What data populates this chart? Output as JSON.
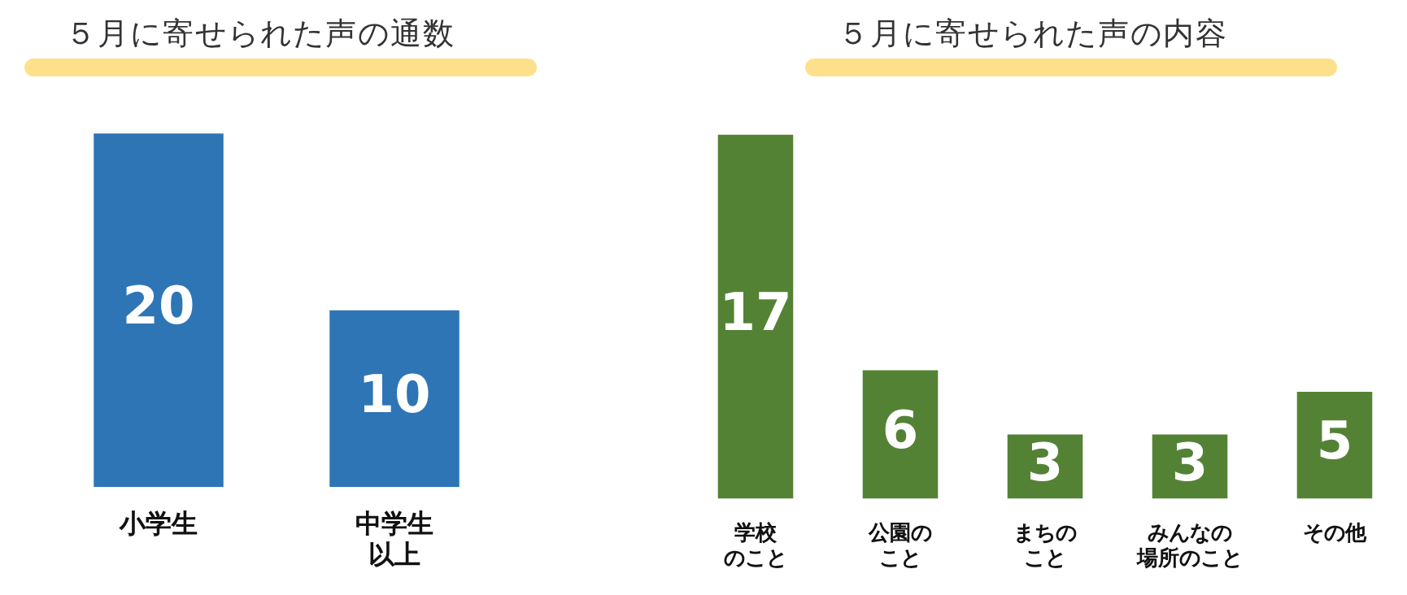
{
  "chart_data": [
    {
      "type": "bar",
      "title": "５月に寄せられた声の通数",
      "categories": [
        "小学生",
        "中学生以上"
      ],
      "values": [
        20,
        10
      ],
      "color": "#2e75b6",
      "data_labels": true,
      "tick_labels": "x"
    },
    {
      "type": "bar",
      "title": "５月に寄せられた声の内容",
      "categories": [
        "学校のこと",
        "公園のこと",
        "まちのこと",
        "みんなの場所のこと",
        "その他"
      ],
      "values": [
        17,
        6,
        3,
        3,
        5
      ],
      "color": "#548235",
      "data_labels": true,
      "tick_labels": "x"
    }
  ]
}
